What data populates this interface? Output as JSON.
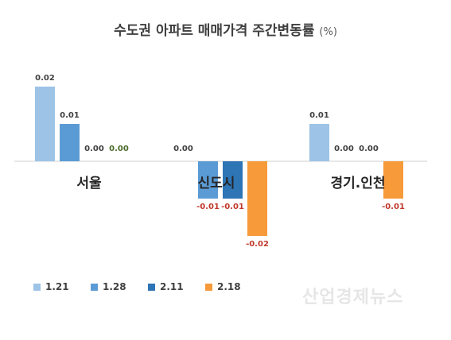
{
  "title": "수도권 아파트 매매가격 주간변동률",
  "title_unit": "(%)",
  "watermark": "산업경제뉴스",
  "colors": {
    "1.21": "#9dc3e6",
    "1.28": "#5b9bd5",
    "2.11": "#2e75b6",
    "2.18": "#f79a3a",
    "label_positive": "#404040",
    "label_zero_green": "#4a6b2a",
    "label_negative": "#c0392b"
  },
  "chart_data": {
    "type": "bar",
    "categories": [
      "서울",
      "신도시",
      "경기.인천"
    ],
    "series": [
      {
        "name": "1.21",
        "values": [
          0.02,
          0.0,
          0.01
        ]
      },
      {
        "name": "1.28",
        "values": [
          0.01,
          -0.01,
          0.0
        ]
      },
      {
        "name": "2.11",
        "values": [
          0.0,
          -0.01,
          0.0
        ]
      },
      {
        "name": "2.18",
        "values": [
          0.0,
          -0.02,
          -0.01
        ]
      }
    ],
    "data_labels": [
      [
        "0.02",
        "0.00",
        "0.01"
      ],
      [
        "0.01",
        "-0.01",
        "0.00"
      ],
      [
        "0.00",
        "-0.01",
        "0.00"
      ],
      [
        "0.00",
        "-0.02",
        "-0.01"
      ]
    ],
    "legend_position": "bottom-left",
    "grid": false
  }
}
